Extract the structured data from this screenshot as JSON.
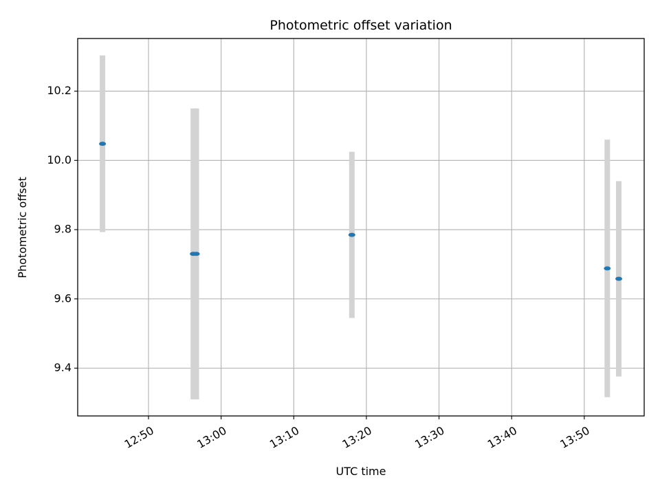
{
  "chart_data": {
    "type": "scatter",
    "title": "Photometric offset variation",
    "xlabel": "UTC time",
    "ylabel": "Photometric offset",
    "x_ticks": [
      "12:50",
      "13:00",
      "13:10",
      "13:20",
      "13:30",
      "13:40",
      "13:50"
    ],
    "y_ticks": [
      "9.4",
      "9.6",
      "9.8",
      "10.0",
      "10.2"
    ],
    "xlim": [
      "12:40:15",
      "13:58:15"
    ],
    "ylim": [
      9.262,
      10.352
    ],
    "grid": true,
    "marker_color": "#1f77b4",
    "errorbar_color": "#d3d3d3",
    "points": [
      {
        "time": "12:43:40",
        "value": 10.048,
        "error": 0.255
      },
      {
        "time": "12:56:10",
        "value": 9.73,
        "error": 0.42
      },
      {
        "time": "12:56:35",
        "value": 9.73,
        "error": 0.42
      },
      {
        "time": "13:18:00",
        "value": 9.785,
        "error": 0.24
      },
      {
        "time": "13:53:10",
        "value": 9.688,
        "error": 0.372
      },
      {
        "time": "13:54:45",
        "value": 9.658,
        "error": 0.282
      }
    ]
  }
}
